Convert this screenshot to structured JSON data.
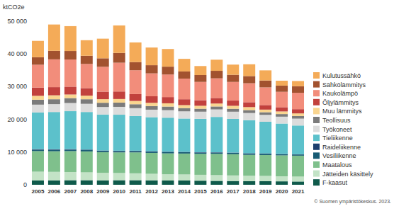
{
  "chart_data": {
    "type": "bar",
    "stacked": true,
    "y_label": "ktCO2e",
    "annotations": [
      "© Suomen ympäristökeskus. 2023."
    ],
    "categories": [
      "2005",
      "2006",
      "2007",
      "2008",
      "2009",
      "2010",
      "2011",
      "2012",
      "2013",
      "2014",
      "2015",
      "2016",
      "2017",
      "2018",
      "2019",
      "2020",
      "2021"
    ],
    "ylim": [
      0,
      50000
    ],
    "yticks": [
      0,
      {
        "value": 10000,
        "label": "10 000"
      },
      {
        "value": 20000,
        "label": "20 000"
      },
      {
        "value": 30000,
        "label": "30 000"
      },
      {
        "value": 40000,
        "label": "40 000"
      },
      {
        "value": 50000,
        "label": "50 000"
      }
    ],
    "grid": false,
    "legend": "right",
    "series": [
      {
        "name": "F-kaasut",
        "color": "#0f5a4b",
        "values": [
          1300,
          1350,
          1400,
          1400,
          1350,
          1400,
          1400,
          1350,
          1300,
          1300,
          1250,
          1200,
          1150,
          1100,
          1100,
          1050,
          1000
        ]
      },
      {
        "name": "Jätteiden käsittely",
        "color": "#c3e3c6",
        "values": [
          2700,
          2600,
          2500,
          2400,
          2300,
          2200,
          2100,
          2000,
          1900,
          1850,
          1800,
          1750,
          1700,
          1650,
          1600,
          1550,
          1500
        ]
      },
      {
        "name": "Maatalous",
        "color": "#7fc08c",
        "values": [
          6300,
          6300,
          6400,
          6400,
          6300,
          6300,
          6400,
          6400,
          6400,
          6400,
          6400,
          6500,
          6500,
          6400,
          6400,
          6400,
          6400
        ]
      },
      {
        "name": "Vesiliikenne",
        "color": "#175b74",
        "values": [
          450,
          450,
          450,
          400,
          400,
          400,
          400,
          400,
          400,
          400,
          400,
          400,
          400,
          400,
          400,
          350,
          350
        ]
      },
      {
        "name": "Raideliikenne",
        "color": "#1d3f6e",
        "values": [
          150,
          150,
          150,
          150,
          120,
          120,
          120,
          110,
          110,
          100,
          100,
          90,
          90,
          90,
          80,
          70,
          70
        ]
      },
      {
        "name": "Tieliikenne",
        "color": "#5cc1cb",
        "values": [
          11200,
          11400,
          11600,
          11500,
          11000,
          11000,
          10600,
          10400,
          10400,
          10200,
          10200,
          10800,
          10300,
          10100,
          9700,
          9300,
          8800
        ]
      },
      {
        "name": "Työkoneet",
        "color": "#dcdcdc",
        "values": [
          2400,
          2400,
          2500,
          2500,
          2300,
          2400,
          2400,
          2300,
          2300,
          2200,
          2200,
          2300,
          2200,
          2200,
          2100,
          2100,
          2100
        ]
      },
      {
        "name": "Teollisuus",
        "color": "#7b7b7b",
        "values": [
          1500,
          1500,
          1500,
          1400,
          1300,
          1300,
          1200,
          1100,
          1100,
          1000,
          900,
          900,
          900,
          900,
          800,
          800,
          800
        ]
      },
      {
        "name": "Muu lämmitys",
        "color": "#f9d590",
        "values": [
          1200,
          1200,
          1100,
          1100,
          1100,
          1100,
          1000,
          1000,
          1000,
          900,
          900,
          900,
          900,
          900,
          800,
          800,
          800
        ]
      },
      {
        "name": "Öljylämmitys",
        "color": "#c2413d",
        "values": [
          2500,
          2500,
          2400,
          2300,
          2300,
          2300,
          2100,
          2000,
          1900,
          1800,
          1700,
          1700,
          1600,
          1500,
          1400,
          1300,
          1300
        ]
      },
      {
        "name": "Kaukolämpö",
        "color": "#f28d7b",
        "values": [
          7000,
          8500,
          8300,
          7400,
          7600,
          8800,
          7300,
          7000,
          6900,
          6300,
          5600,
          6000,
          5700,
          5800,
          5400,
          4700,
          5000
        ]
      },
      {
        "name": "Sähkölämmitys",
        "color": "#a2522f",
        "values": [
          2300,
          2600,
          2600,
          2500,
          2600,
          3000,
          2500,
          2500,
          2400,
          2200,
          2100,
          2300,
          2200,
          2200,
          2100,
          1900,
          2000
        ]
      },
      {
        "name": "Kulutussähkö",
        "color": "#f4ab58",
        "values": [
          5000,
          8050,
          7600,
          4750,
          6000,
          8400,
          6000,
          5400,
          5400,
          3850,
          2750,
          3400,
          3100,
          3600,
          3100,
          1500,
          1600
        ]
      }
    ]
  }
}
